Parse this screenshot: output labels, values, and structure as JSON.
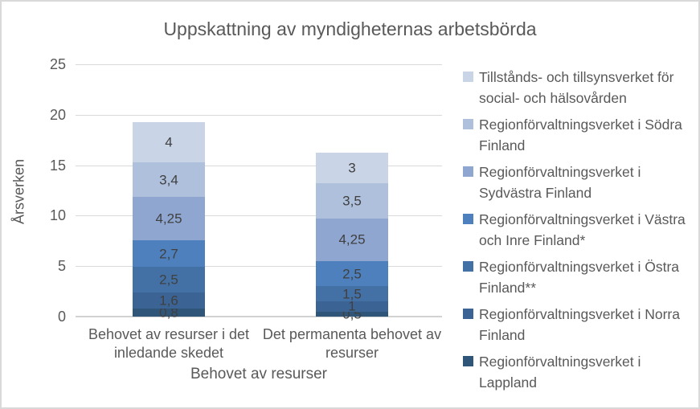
{
  "chart_data": {
    "type": "bar",
    "stacked": true,
    "title": "Uppskattning av myndigheternas arbetsbörda",
    "xlabel": "Behovet av resurser",
    "ylabel": "Årsverken",
    "ylim": [
      0,
      25
    ],
    "yticks": [
      0,
      5,
      10,
      15,
      20,
      25
    ],
    "grid": true,
    "legend_position": "right",
    "categories": [
      "Behovet av resurser i det\ninledande skedet",
      "Det permanenta behovet av\nresurser"
    ],
    "series": [
      {
        "name": "Regionförvaltningsverket i Lappland",
        "legend_label": "Regionförvaltningsverket i\nLappland",
        "color": "#2F5579",
        "values": [
          0.8,
          0.5
        ],
        "labels": [
          "0,8",
          "0,5"
        ]
      },
      {
        "name": "Regionförvaltningsverket i Norra Finland",
        "legend_label": "Regionförvaltningsverket i Norra\nFinland",
        "color": "#3B6495",
        "values": [
          1.6,
          1
        ],
        "labels": [
          "1,6",
          "1"
        ]
      },
      {
        "name": "Regionförvaltningsverket i Östra Finland**",
        "legend_label": "Regionförvaltningsverket i Östra\nFinland**",
        "color": "#4371A5",
        "values": [
          2.5,
          1.5
        ],
        "labels": [
          "2,5",
          "1,5"
        ]
      },
      {
        "name": "Regionförvaltningsverket i Västra och Inre Finland*",
        "legend_label": "Regionförvaltningsverket i Västra\noch Inre Finland*",
        "color": "#4E80BD",
        "values": [
          2.7,
          2.5
        ],
        "labels": [
          "2,7",
          "2,5"
        ]
      },
      {
        "name": "Regionförvaltningsverket i Sydvästra Finland",
        "legend_label": "Regionförvaltningsverket i\nSydvästra Finland",
        "color": "#8EA6D0",
        "values": [
          4.25,
          4.25
        ],
        "labels": [
          "4,25",
          "4,25"
        ]
      },
      {
        "name": "Regionförvaltningsverket i Södra Finland",
        "legend_label": "Regionförvaltningsverket i Södra\nFinland",
        "color": "#AFC0DD",
        "values": [
          3.4,
          3.5
        ],
        "labels": [
          "3,4",
          "3,5"
        ]
      },
      {
        "name": "Tillstånds- och tillsynsverket för social- och hälsovården",
        "legend_label": "Tillstånds- och tillsynsverket för\nsocial- och hälsovården",
        "color": "#C9D4E6",
        "values": [
          4,
          3
        ],
        "labels": [
          "4",
          "3"
        ]
      }
    ],
    "totals": [
      19.25,
      16.25
    ]
  }
}
